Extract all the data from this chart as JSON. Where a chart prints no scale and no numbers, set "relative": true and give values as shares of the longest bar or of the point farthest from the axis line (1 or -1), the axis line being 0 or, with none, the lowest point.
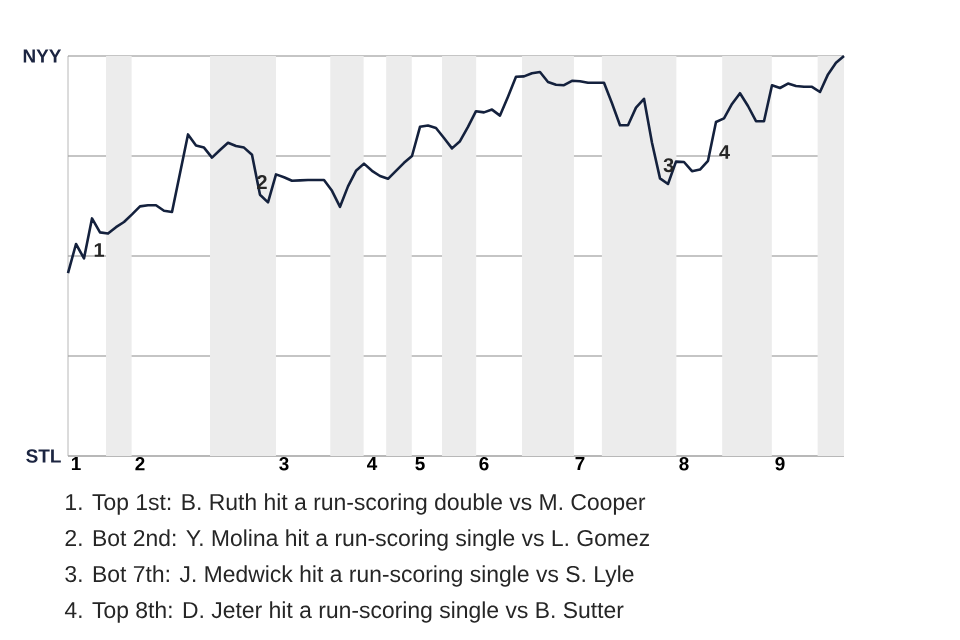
{
  "chart_data": {
    "type": "line",
    "relative": true,
    "categories": [
      null,
      "1",
      null,
      null,
      null,
      null,
      null,
      null,
      null,
      "2",
      null,
      null,
      null,
      null,
      null,
      null,
      null,
      null,
      null,
      null,
      null,
      null,
      null,
      null,
      null,
      null,
      null,
      "3",
      null,
      null,
      null,
      null,
      null,
      null,
      null,
      null,
      null,
      null,
      "4",
      null,
      null,
      null,
      null,
      null,
      "5",
      null,
      null,
      null,
      null,
      null,
      null,
      null,
      "6",
      null,
      null,
      null,
      null,
      null,
      null,
      null,
      null,
      null,
      null,
      null,
      "7",
      null,
      null,
      null,
      null,
      null,
      null,
      null,
      null,
      null,
      null,
      null,
      null,
      "8",
      null,
      null,
      null,
      null,
      null,
      null,
      null,
      null,
      null,
      null,
      null,
      "9",
      null,
      null,
      null,
      null,
      null,
      null,
      null,
      null
    ],
    "grid": "y",
    "series": [
      {
        "color": "#14213d",
        "values": [
          0.457,
          0.53,
          0.494,
          0.594,
          0.559,
          0.556,
          0.572,
          0.585,
          0.604,
          0.624,
          0.627,
          0.627,
          0.613,
          0.61,
          0.707,
          0.804,
          0.776,
          0.771,
          0.746,
          0.765,
          0.783,
          0.775,
          0.771,
          0.753,
          0.653,
          0.634,
          0.704,
          0.697,
          0.688,
          0.689,
          0.69,
          0.69,
          0.69,
          0.663,
          0.623,
          0.674,
          0.713,
          0.731,
          0.713,
          0.7,
          0.693,
          0.713,
          0.733,
          0.75,
          0.823,
          0.826,
          0.82,
          0.795,
          0.769,
          0.787,
          0.823,
          0.862,
          0.859,
          0.866,
          0.851,
          0.898,
          0.948,
          0.949,
          0.957,
          0.96,
          0.935,
          0.928,
          0.927,
          0.938,
          0.937,
          0.933,
          0.933,
          0.933,
          0.882,
          0.827,
          0.827,
          0.871,
          0.893,
          0.783,
          0.694,
          0.68,
          0.736,
          0.735,
          0.712,
          0.716,
          0.738,
          0.835,
          0.844,
          0.88,
          0.907,
          0.875,
          0.837,
          0.837,
          0.927,
          0.92,
          0.931,
          0.925,
          0.923,
          0.923,
          0.91,
          0.954,
          0.983,
          1.0
        ]
      }
    ],
    "annotations": [
      "NYY",
      "STL",
      "1",
      "2",
      "3",
      "4",
      "1. Top 1st: B. Ruth hit a run-scoring double vs M. Cooper",
      "2. Bot 2nd: Y. Molina hit a run-scoring single vs L. Gomez",
      "3. Bot 7th: J. Medwick hit a run-scoring single vs S. Lyle",
      "4. Top 8th: D. Jeter hit a run-scoring single vs B. Sutter"
    ]
  }
}
